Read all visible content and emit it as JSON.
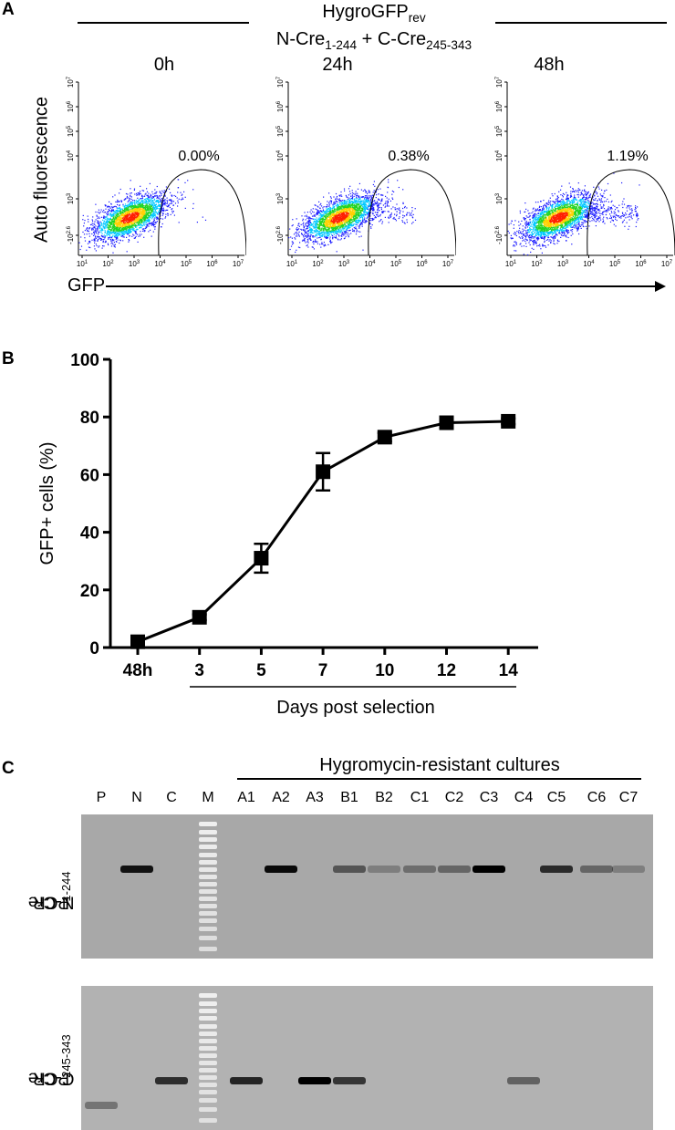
{
  "panelA": {
    "letter": "A",
    "header_main": "HygroGFP",
    "header_main_sub": "rev",
    "header_line2_a": "N-Cre",
    "header_line2_a_sub": "1-244",
    "header_line2_plus": " + C-Cre",
    "header_line2_b_sub": "245-343",
    "y_axis_label": "Auto fluorescence",
    "x_axis_label": "GFP",
    "plots": [
      {
        "time": "0h",
        "gate_percent": "0.00%"
      },
      {
        "time": "24h",
        "gate_percent": "0.38%"
      },
      {
        "time": "48h",
        "gate_percent": "1.19%"
      }
    ],
    "x_ticks": [
      "10",
      "10",
      "10",
      "10",
      "10",
      "10",
      "10"
    ],
    "x_tick_exps": [
      "1",
      "2",
      "3",
      "4",
      "5",
      "6",
      "7"
    ],
    "y_ticks": [
      "10",
      "10",
      "10",
      "10",
      "10",
      "-10"
    ],
    "y_tick_exps": [
      "7",
      "6",
      "5",
      "4",
      "3",
      "2.6"
    ]
  },
  "panelB": {
    "letter": "B",
    "chart_data": {
      "type": "line",
      "categories": [
        "48h",
        "3",
        "5",
        "7",
        "10",
        "12",
        "14"
      ],
      "series": [
        {
          "values": [
            2,
            10.5,
            31,
            61,
            73,
            78,
            78.5
          ],
          "error": [
            0,
            1,
            5,
            6.5,
            1.5,
            1,
            1
          ]
        }
      ],
      "ylabel": "GFP+ cells (%)",
      "xlabel": "Days post selection",
      "ylim": [
        0,
        100
      ],
      "yticks": [
        "0",
        "20",
        "40",
        "60",
        "80",
        "100"
      ]
    }
  },
  "panelC": {
    "letter": "C",
    "group_label": "Hygromycin-resistant cultures",
    "lanes": [
      "P",
      "N",
      "C",
      "M",
      "A1",
      "A2",
      "A3",
      "B1",
      "B2",
      "C1",
      "C2",
      "C3",
      "C4",
      "C5",
      "C6",
      "C7"
    ],
    "gel1_label": "N-Cre",
    "gel1_label_sub": "1-244",
    "gel1_label_suffix": " PCR",
    "gel2_label": "C-Cre",
    "gel2_label_sub": "245-343",
    "gel2_label_suffix": " PCR",
    "gel1_band_intensity": [
      0,
      0.9,
      0,
      0,
      0,
      0.95,
      0,
      0.5,
      0.25,
      0.35,
      0.4,
      1.0,
      0,
      0.75,
      0.4,
      0.25
    ],
    "gel2_band_intensity": [
      0.35,
      0,
      0.75,
      0,
      0.8,
      0,
      1.0,
      0.7,
      0,
      0,
      0,
      0,
      0.45,
      0,
      0,
      0
    ]
  }
}
